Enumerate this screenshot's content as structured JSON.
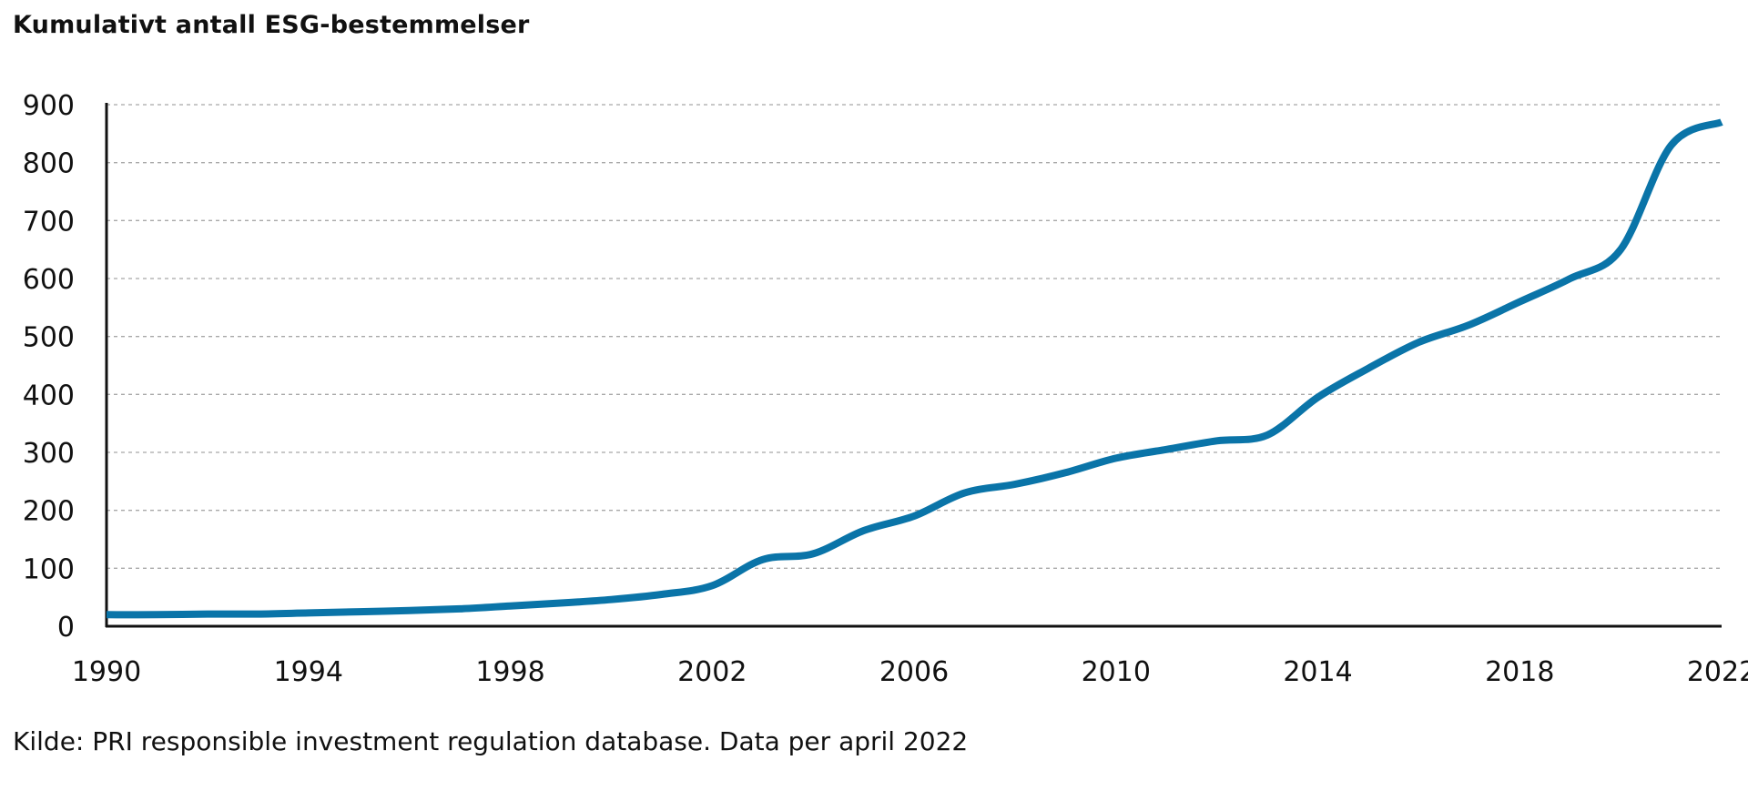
{
  "chart_data": {
    "type": "line",
    "title": "Kumulativt antall ESG-bestemmelser",
    "source": "Kilde: PRI responsible investment regulation database. Data per april 2022",
    "xlabel": "",
    "ylabel": "",
    "xlim": [
      1990,
      2022
    ],
    "ylim": [
      0,
      900
    ],
    "x_ticks": [
      1990,
      1994,
      1998,
      2002,
      2006,
      2010,
      2014,
      2018,
      2022
    ],
    "y_ticks": [
      0,
      100,
      200,
      300,
      400,
      500,
      600,
      700,
      800,
      900
    ],
    "grid": "horizontal dashed",
    "legend": "none",
    "series": [
      {
        "color": "#0a74a8",
        "x": [
          1990,
          1991,
          1992,
          1993,
          1994,
          1995,
          1996,
          1997,
          1998,
          1999,
          2000,
          2001,
          2002,
          2003,
          2004,
          2005,
          2006,
          2007,
          2008,
          2009,
          2010,
          2011,
          2012,
          2013,
          2014,
          2015,
          2016,
          2017,
          2018,
          2019,
          2020,
          2021,
          2022
        ],
        "values": [
          20,
          20,
          21,
          21,
          23,
          25,
          27,
          30,
          35,
          40,
          46,
          55,
          70,
          115,
          125,
          165,
          190,
          230,
          245,
          265,
          290,
          305,
          320,
          330,
          395,
          445,
          490,
          520,
          560,
          600,
          650,
          830,
          870
        ]
      }
    ]
  }
}
